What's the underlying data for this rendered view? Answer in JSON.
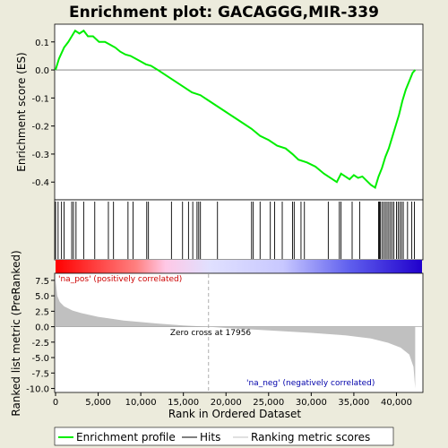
{
  "chart_data": {
    "type": "line",
    "title": "Enrichment plot: GACAGGG,MIR-339",
    "top_panel": {
      "ylabel": "Enrichment score (ES)",
      "ylim": [
        -0.46,
        0.16
      ],
      "yticks": [
        0.1,
        0.0,
        -0.1,
        -0.2,
        -0.3,
        -0.4
      ],
      "ytick_labels": [
        "0.1",
        "0.0",
        "-0.1",
        "-0.2",
        "-0.3",
        "-0.4"
      ],
      "series": [
        {
          "name": "Enrichment profile",
          "color": "#00ee00",
          "x": [
            0,
            400,
            700,
            1000,
            1500,
            1900,
            2300,
            2800,
            3300,
            3800,
            4400,
            5100,
            5800,
            6400,
            7000,
            7600,
            8200,
            8800,
            9400,
            10000,
            10600,
            11200,
            12000,
            13000,
            14000,
            15000,
            16000,
            17000,
            18000,
            19000,
            20000,
            21000,
            22000,
            23000,
            24000,
            25000,
            26000,
            27000,
            27800,
            28500,
            29500,
            30500,
            31500,
            32500,
            33000,
            33500,
            34000,
            34500,
            35000,
            35500,
            36000,
            36500,
            37000,
            37500,
            37900,
            38300,
            38700,
            39100,
            39500,
            39900,
            40300,
            40700,
            41100,
            41500,
            41900,
            42200
          ],
          "y": [
            0.0,
            0.04,
            0.06,
            0.08,
            0.1,
            0.12,
            0.14,
            0.13,
            0.14,
            0.12,
            0.12,
            0.1,
            0.1,
            0.09,
            0.08,
            0.065,
            0.055,
            0.05,
            0.04,
            0.03,
            0.02,
            0.015,
            0.0,
            -0.02,
            -0.04,
            -0.06,
            -0.08,
            -0.09,
            -0.11,
            -0.13,
            -0.15,
            -0.17,
            -0.19,
            -0.21,
            -0.235,
            -0.25,
            -0.27,
            -0.28,
            -0.3,
            -0.32,
            -0.33,
            -0.345,
            -0.37,
            -0.39,
            -0.4,
            -0.37,
            -0.38,
            -0.39,
            -0.375,
            -0.385,
            -0.38,
            -0.395,
            -0.41,
            -0.42,
            -0.38,
            -0.35,
            -0.31,
            -0.28,
            -0.24,
            -0.2,
            -0.16,
            -0.11,
            -0.07,
            -0.04,
            -0.01,
            0.0
          ]
        }
      ]
    },
    "hits": [
      0,
      300,
      700,
      1000,
      1900,
      2100,
      2400,
      3300,
      4600,
      6200,
      6800,
      8500,
      9100,
      10700,
      10900,
      13600,
      14900,
      15600,
      16100,
      16600,
      16800,
      17000,
      19000,
      23000,
      23200,
      24000,
      25200,
      25700,
      26600,
      27800,
      28000,
      28800,
      29200,
      32000,
      33300,
      33500,
      34800,
      35700,
      37900,
      38000,
      38100,
      38300,
      38500,
      38700,
      38900,
      39100,
      39300,
      39500,
      39700,
      40000,
      40200,
      40400,
      40600,
      40800,
      41300,
      41800,
      42100
    ],
    "bottom_panel": {
      "ylabel": "Ranked list metric (PreRanked)",
      "xlabel": "Rank in Ordered Dataset",
      "ylim": [
        -10.5,
        8.5
      ],
      "yticks": [
        7.5,
        5.0,
        2.5,
        0.0,
        -2.5,
        -5.0,
        -7.5,
        -10.0
      ],
      "ytick_labels": [
        "7.5",
        "5.0",
        "2.5",
        "0.0",
        "-2.5",
        "-5.0",
        "-7.5",
        "-10.0"
      ],
      "xlim": [
        0,
        43000
      ],
      "xticks": [
        0,
        5000,
        10000,
        15000,
        20000,
        25000,
        30000,
        35000,
        40000
      ],
      "xtick_labels": [
        "0",
        "5,000",
        "10,000",
        "15,000",
        "20,000",
        "25,000",
        "30,000",
        "35,000",
        "40,000"
      ],
      "metric_x": [
        0,
        200,
        500,
        1000,
        2000,
        3000,
        5000,
        8000,
        12000,
        15000,
        17956,
        21000,
        25000,
        30000,
        34000,
        37000,
        39000,
        40500,
        41500,
        42000,
        42200
      ],
      "metric_y": [
        7.5,
        5.0,
        4.0,
        3.3,
        2.6,
        2.2,
        1.6,
        1.0,
        0.5,
        0.2,
        0.0,
        -0.3,
        -0.6,
        -1.0,
        -1.4,
        -1.9,
        -2.6,
        -3.4,
        -4.5,
        -6.5,
        -10.0
      ],
      "zero_cross": 17956,
      "zero_cross_label": "Zero cross at 17956",
      "pos_label": "'na_pos' (positively correlated)",
      "neg_label": "'na_neg' (negatively correlated)"
    },
    "legend": [
      {
        "label": "Enrichment profile",
        "color": "#00ee00"
      },
      {
        "label": "Hits",
        "color": "#000000"
      },
      {
        "label": "Ranking metric scores",
        "color": "#c0c0c0"
      }
    ],
    "colors": {
      "pos": "#ff0000",
      "neg": "#0000ff",
      "pos_label": "#cc0000",
      "neg_label": "#0000aa"
    }
  }
}
